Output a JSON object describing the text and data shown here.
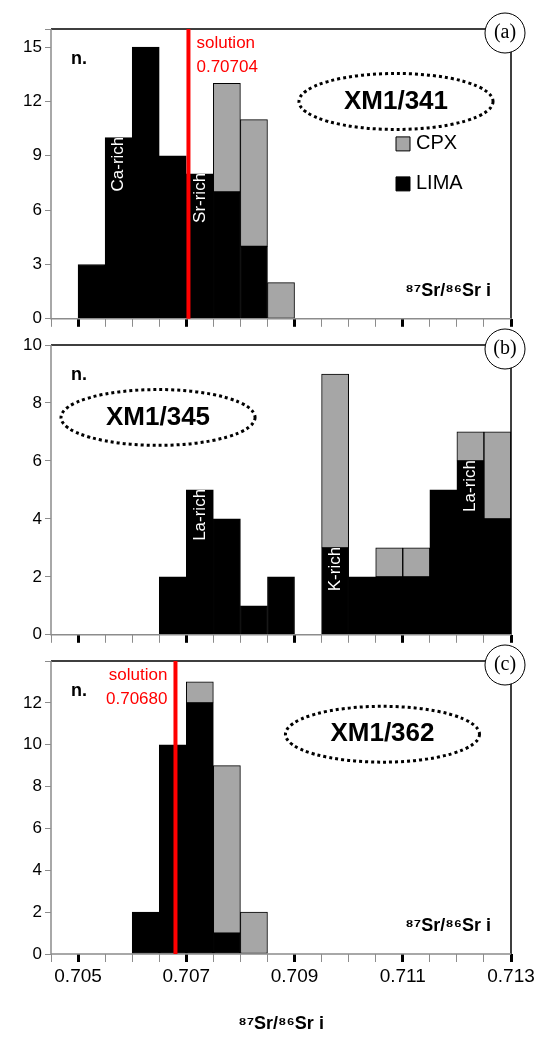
{
  "chart_data": [
    {
      "type": "bar",
      "title": "(a)",
      "subtitle": "XM1/341",
      "ylabel": "n.",
      "annotations": [
        "⁸⁷Sr/⁸⁶Sr i",
        {
          "text": "Ca-rich",
          "x": 0.70575,
          "y": 10
        },
        {
          "text": "Sr-rich",
          "x": 0.70725,
          "y": 8
        }
      ],
      "x": [
        0.70525,
        0.70575,
        0.70625,
        0.70675,
        0.70725,
        0.70775,
        0.70825,
        0.70875
      ],
      "series": [
        {
          "name": "LIMA",
          "color": "#000000",
          "values": [
            3,
            10,
            15,
            9,
            8,
            7,
            4,
            0
          ]
        },
        {
          "name": "CPX",
          "color": "#a6a6a6",
          "values": [
            0,
            0,
            0,
            0,
            0,
            6,
            7,
            2
          ]
        }
      ],
      "stacked": true,
      "legend": "right",
      "tick_labels": "y",
      "ref_lines": [
        {
          "axis": "x",
          "value": 0.70704,
          "label": "solution 0.70704",
          "color": "#ff0000"
        }
      ],
      "xlim": [
        0.7045,
        0.713
      ],
      "xticks": [
        {
          "value": 0.7045,
          "label": null
        },
        0.705,
        {
          "value": 0.7055,
          "label": null
        },
        {
          "value": 0.706,
          "label": null
        },
        {
          "value": 0.7065,
          "label": null
        },
        0.707,
        {
          "value": 0.7075,
          "label": null
        },
        {
          "value": 0.708,
          "label": null
        },
        {
          "value": 0.7085,
          "label": null
        },
        0.709,
        {
          "value": 0.7095,
          "label": null
        },
        {
          "value": 0.71,
          "label": null
        },
        {
          "value": 0.7105,
          "label": null
        },
        0.711,
        {
          "value": 0.7115,
          "label": null
        },
        {
          "value": 0.712,
          "label": null
        },
        {
          "value": 0.7125,
          "label": null
        },
        0.713
      ],
      "ylim": [
        0,
        16
      ],
      "yticks": [
        0,
        3,
        6,
        9,
        12,
        15,
        {
          "value": 16,
          "label": null
        }
      ]
    },
    {
      "type": "bar",
      "title": "(b)",
      "subtitle": "XM1/345",
      "ylabel": "n.",
      "annotations": [
        {
          "text": "La-rich",
          "x": 0.70725,
          "y": 5
        },
        {
          "text": "K-rich",
          "x": 0.70975,
          "y": 3
        },
        {
          "text": "La-rich",
          "x": 0.71225,
          "y": 6
        }
      ],
      "x": [
        0.70675,
        0.70725,
        0.70775,
        0.70825,
        0.70875,
        0.70925,
        0.70975,
        0.71025,
        0.71075,
        0.71125,
        0.71175,
        0.71225,
        0.71275
      ],
      "series": [
        {
          "color": "#000000",
          "values": [
            2,
            5,
            4,
            1,
            2,
            0,
            3,
            2,
            2,
            2,
            5,
            6,
            4
          ]
        },
        {
          "color": "#a6a6a6",
          "values": [
            0,
            0,
            0,
            0,
            0,
            0,
            6,
            0,
            1,
            1,
            0,
            1,
            3
          ]
        }
      ],
      "stacked": true,
      "tick_labels": "y",
      "xlim": [
        0.7045,
        0.713
      ],
      "xticks": [
        {
          "value": 0.7045,
          "label": null
        },
        0.705,
        {
          "value": 0.7055,
          "label": null
        },
        {
          "value": 0.706,
          "label": null
        },
        {
          "value": 0.7065,
          "label": null
        },
        0.707,
        {
          "value": 0.7075,
          "label": null
        },
        {
          "value": 0.708,
          "label": null
        },
        {
          "value": 0.7085,
          "label": null
        },
        0.709,
        {
          "value": 0.7095,
          "label": null
        },
        {
          "value": 0.71,
          "label": null
        },
        {
          "value": 0.7105,
          "label": null
        },
        0.711,
        {
          "value": 0.7115,
          "label": null
        },
        {
          "value": 0.712,
          "label": null
        },
        {
          "value": 0.7125,
          "label": null
        },
        0.713
      ],
      "ylim": [
        0,
        10
      ],
      "yticks": [
        0,
        2,
        4,
        6,
        8,
        10
      ]
    },
    {
      "type": "bar",
      "title": "(c)",
      "subtitle": "XM1/362",
      "ylabel": "n.",
      "xlabel": "⁸⁷Sr/⁸⁶Sr i",
      "annotations": [
        "⁸⁷Sr/⁸⁶Sr i"
      ],
      "x": [
        0.70625,
        0.70675,
        0.70725,
        0.70775,
        0.70825
      ],
      "series": [
        {
          "color": "#000000",
          "values": [
            2,
            10,
            12,
            1,
            0
          ]
        },
        {
          "color": "#a6a6a6",
          "values": [
            0,
            0,
            1,
            8,
            2
          ]
        }
      ],
      "stacked": true,
      "ref_lines": [
        {
          "axis": "x",
          "value": 0.7068,
          "label": "solution 0.70680",
          "color": "#ff0000"
        }
      ],
      "xlim": [
        0.7045,
        0.713
      ],
      "xticks": [
        {
          "value": 0.7045,
          "label": null
        },
        0.705,
        {
          "value": 0.7055,
          "label": null
        },
        {
          "value": 0.706,
          "label": null
        },
        {
          "value": 0.7065,
          "label": null
        },
        0.707,
        {
          "value": 0.7075,
          "label": null
        },
        {
          "value": 0.708,
          "label": null
        },
        {
          "value": 0.7085,
          "label": null
        },
        0.709,
        {
          "value": 0.7095,
          "label": null
        },
        {
          "value": 0.71,
          "label": null
        },
        {
          "value": 0.7105,
          "label": null
        },
        0.711,
        {
          "value": 0.7115,
          "label": null
        },
        {
          "value": 0.712,
          "label": null
        },
        {
          "value": 0.7125,
          "label": null
        },
        0.713
      ],
      "ylim": [
        0,
        14
      ],
      "yticks": [
        0,
        2,
        4,
        6,
        8,
        10,
        12,
        {
          "value": 14,
          "label": null
        }
      ]
    }
  ]
}
